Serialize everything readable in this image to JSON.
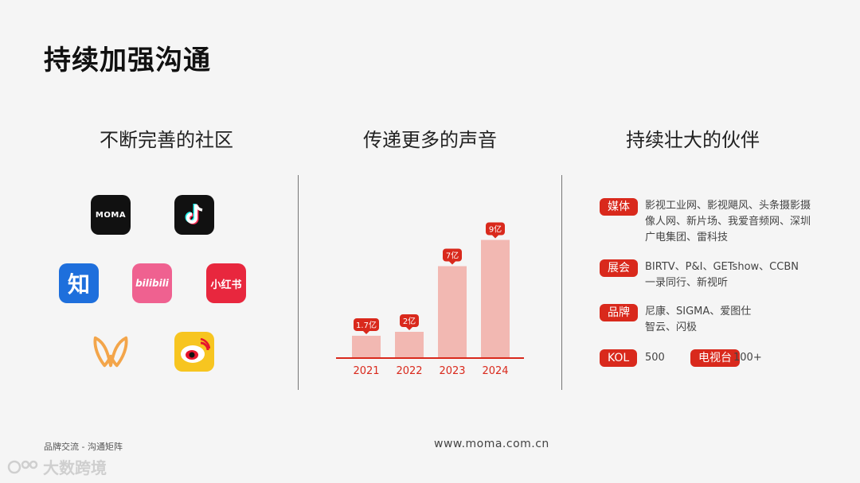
{
  "header": {
    "title": "持续加强沟通"
  },
  "columns": {
    "community": {
      "title": "不断完善的社区"
    },
    "voice": {
      "title": "传递更多的声音"
    },
    "partners": {
      "title": "持续壮大的伙伴"
    }
  },
  "apps": [
    {
      "name": "moma",
      "label": "MOMA",
      "bg": "#111111"
    },
    {
      "name": "douyin",
      "label": "",
      "bg": "#111111"
    },
    {
      "name": "zhihu",
      "label": "知",
      "bg": "#1e6fdc"
    },
    {
      "name": "bilibili",
      "label": "bilibili",
      "bg": "#ef6190"
    },
    {
      "name": "xiaohongshu",
      "label": "小红书",
      "bg": "#e8273e"
    },
    {
      "name": "wx-app",
      "label": "",
      "bg": "#f5f5f5"
    },
    {
      "name": "weibo",
      "label": "",
      "bg": "#f7c520"
    }
  ],
  "chart_data": {
    "type": "bar",
    "categories": [
      "2021",
      "2022",
      "2023",
      "2024"
    ],
    "values": [
      1.7,
      2,
      7,
      9
    ],
    "data_labels": [
      "1.7亿",
      "2亿",
      "7亿",
      "9亿"
    ],
    "ylim": [
      0,
      10
    ],
    "bar_color": "#f2b8b2",
    "label_color": "#d9291c",
    "axis_color": "#d9291c"
  },
  "partners": [
    {
      "tag": "媒体",
      "text": "影视工业网、影视飓风、头条摄影摄像人网、新片场、我爱音频网、深圳广电集团、雷科技"
    },
    {
      "tag": "展会",
      "text": "BIRTV、P&I、GETshow、CCBN一录同行、新视听"
    },
    {
      "tag": "品牌",
      "text": "尼康、SIGMA、爱图仕智云、闪极"
    }
  ],
  "kol": {
    "tag": "KOL",
    "value": "500",
    "tv_tag": "电视台",
    "tv_value": "100+"
  },
  "footer": {
    "left": "品牌交流 - 沟通矩阵",
    "url": "www.moma.com.cn"
  },
  "watermark": {
    "text": "大数跨境"
  }
}
